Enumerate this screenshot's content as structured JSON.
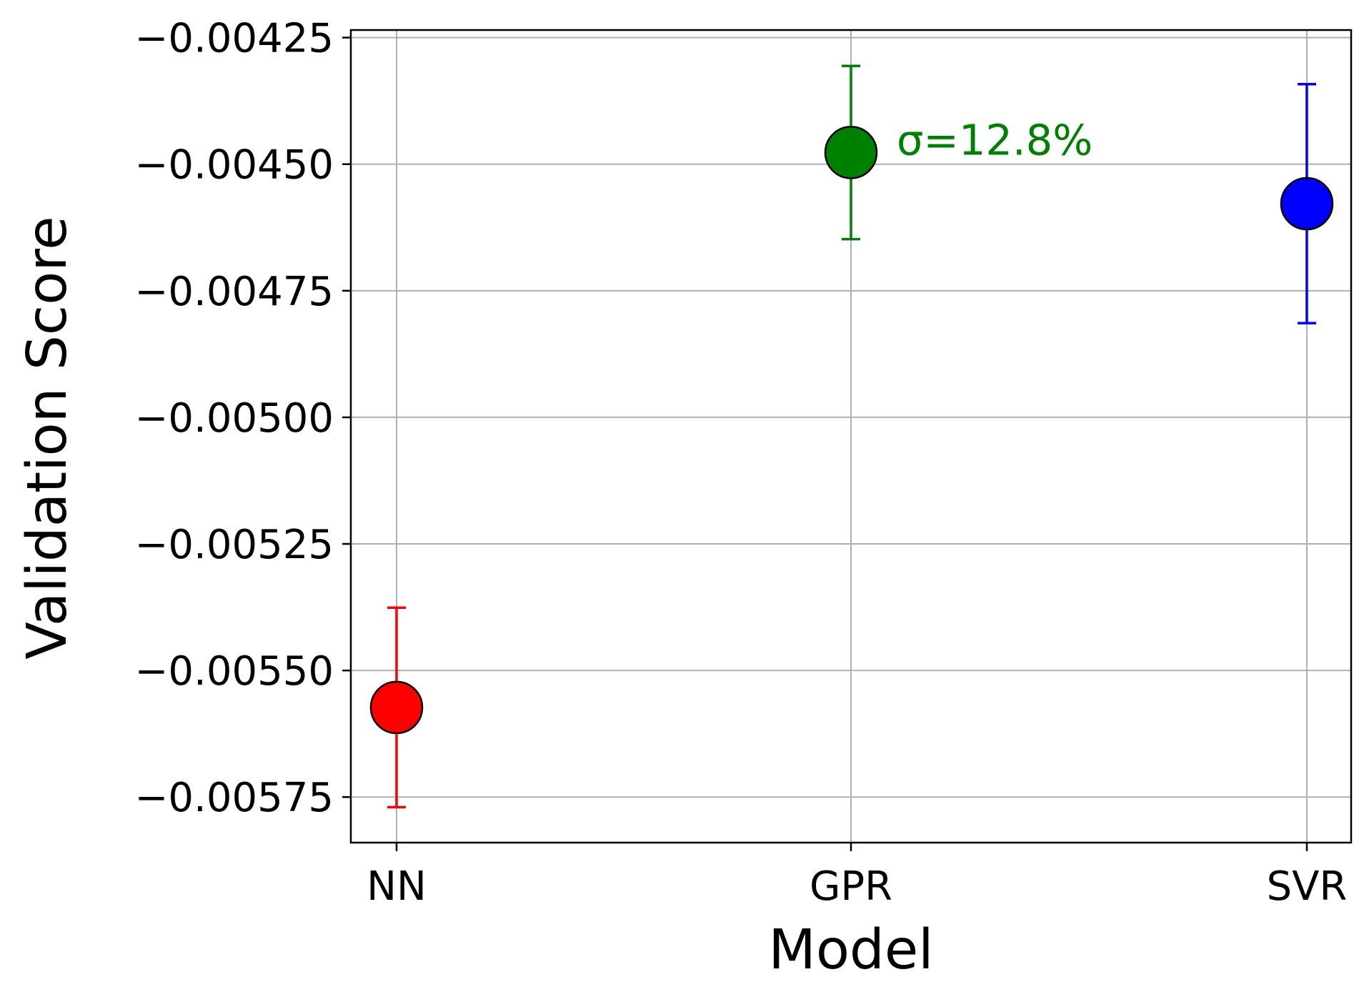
{
  "chart_data": {
    "type": "scatter",
    "title": "",
    "xlabel": "Model",
    "ylabel": "Validation Score",
    "categories": [
      "NN",
      "GPR",
      "SVR"
    ],
    "y_ticks": [
      -0.00425,
      -0.0045,
      -0.00475,
      -0.005,
      -0.00525,
      -0.0055,
      -0.00575
    ],
    "y_tick_labels": [
      "−0.00425",
      "−0.00450",
      "−0.00475",
      "−0.00500",
      "−0.00525",
      "−0.00550",
      "−0.00575"
    ],
    "ylim": [
      -0.00584,
      -0.004235
    ],
    "grid": true,
    "points": [
      {
        "category": "NN",
        "value": -0.005573,
        "error": 0.000197,
        "color": "#ff0000"
      },
      {
        "category": "GPR",
        "value": -0.004477,
        "error": 0.000171,
        "color": "#008000"
      },
      {
        "category": "SVR",
        "value": -0.004578,
        "error": 0.000236,
        "color": "#0000ff"
      }
    ],
    "annotation": {
      "text": "σ=12.8%",
      "category": "GPR",
      "color": "#008000"
    }
  }
}
